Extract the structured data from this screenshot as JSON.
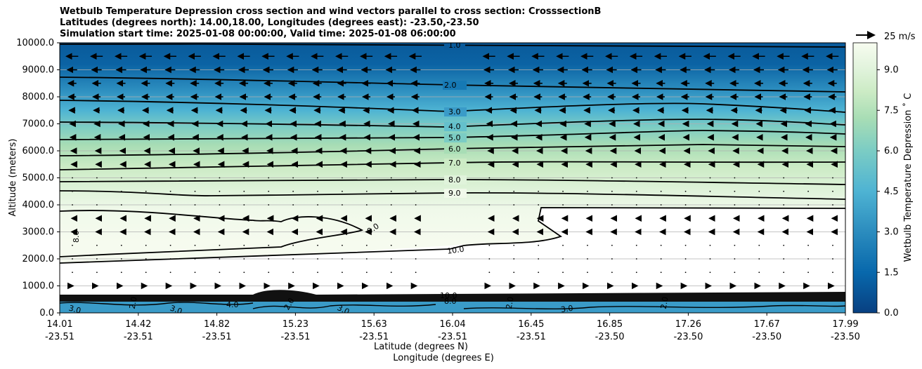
{
  "title_lines": [
    "Wetbulb Temperature Depression cross section and wind vectors parallel to cross section: CrosssectionB",
    "Latitudes (degrees north): 14.00,18.00, Longitudes (degrees east): -23.50,-23.50",
    "Simulation start time: 2025-01-08 00:00:00, Valid time: 2025-01-08 06:00:00"
  ],
  "chart_data": {
    "type": "heatmap",
    "plot_kind": "filled contour cross section with contour lines and wind vectors",
    "ylabel": "Altitude (meters)",
    "xlabel_lat": "Latitude (degrees N)",
    "xlabel_lon": "Longitude (degrees E)",
    "ylim": [
      0,
      10000
    ],
    "y_ticks": [
      "0.0",
      "1000.0",
      "2000.0",
      "3000.0",
      "4000.0",
      "5000.0",
      "6000.0",
      "7000.0",
      "8000.0",
      "9000.0",
      "10000.0"
    ],
    "x_ticks_lat": [
      "14.01",
      "14.42",
      "14.82",
      "15.23",
      "15.63",
      "16.04",
      "16.45",
      "16.85",
      "17.26",
      "17.67",
      "17.99"
    ],
    "x_ticks_lon": [
      "-23.51",
      "-23.51",
      "-23.51",
      "-23.51",
      "-23.51",
      "-23.51",
      "-23.51",
      "-23.50",
      "-23.50",
      "-23.50",
      "-23.50"
    ],
    "grid": "horizontal",
    "colorbar": {
      "label": "Wetbulb Temperature Depression ˚ C",
      "ticks": [
        "0.0",
        "1.5",
        "3.0",
        "4.5",
        "6.0",
        "7.5",
        "9.0"
      ],
      "range": [
        0,
        10
      ],
      "colormap": "GnBu reversed",
      "colors": [
        "#084081",
        "#0a5a9a",
        "#0868ac",
        "#1679b4",
        "#2b8cbe",
        "#3a9bc8",
        "#4eb3d3",
        "#64c0cc",
        "#7bccc4",
        "#93d5c4",
        "#a8ddb5",
        "#bae4bc",
        "#ccebc5",
        "#dcf1d5",
        "#e0f3db",
        "#eaf6e3",
        "#f3faee",
        "#f7fcf0",
        "#ffffff"
      ]
    },
    "field_profile_midsection": [
      {
        "altitude": 10000,
        "value": 0.8
      },
      {
        "altitude": 9000,
        "value": 1.5
      },
      {
        "altitude": 8000,
        "value": 2.5
      },
      {
        "altitude": 7000,
        "value": 4.0
      },
      {
        "altitude": 6000,
        "value": 6.0
      },
      {
        "altitude": 5000,
        "value": 7.5
      },
      {
        "altitude": 4000,
        "value": 9.2
      },
      {
        "altitude": 3000,
        "value": 9.8
      },
      {
        "altitude": 2000,
        "value": 10.0
      },
      {
        "altitude": 1000,
        "value": 10.0
      },
      {
        "altitude": 500,
        "value": 3.0
      },
      {
        "altitude": 0,
        "value": 2.0
      }
    ],
    "contour_labels": [
      "1.0",
      "2.0",
      "3.0",
      "4.0",
      "5.0",
      "6.0",
      "7.0",
      "8.0",
      "9.0",
      "9.0",
      "10.0",
      "8.0",
      "10.0",
      "8.0",
      "3.0",
      "3.0",
      "3.0",
      "3.0",
      "2.0",
      "2.0",
      "2.0",
      "2.0",
      "4.0"
    ],
    "wind_vectors": {
      "key_label": "25 m/s",
      "direction": "parallel to cross section",
      "rows": [
        {
          "altitude": 9500,
          "u": -16
        },
        {
          "altitude": 9000,
          "u": -13
        },
        {
          "altitude": 8500,
          "u": -11
        },
        {
          "altitude": 8000,
          "u": -10
        },
        {
          "altitude": 7500,
          "u": -8
        },
        {
          "altitude": 7000,
          "u": -6
        },
        {
          "altitude": 6500,
          "u": -5
        },
        {
          "altitude": 6000,
          "u": -3
        },
        {
          "altitude": 5500,
          "u": -2
        },
        {
          "altitude": 5000,
          "u": -1
        },
        {
          "altitude": 4500,
          "u": -0.5
        },
        {
          "altitude": 4000,
          "u": -1
        },
        {
          "altitude": 3500,
          "u": -1.5
        },
        {
          "altitude": 3000,
          "u": -2
        },
        {
          "altitude": 2500,
          "u": -1
        },
        {
          "altitude": 2000,
          "u": -0.5
        },
        {
          "altitude": 1500,
          "u": 0
        },
        {
          "altitude": 1000,
          "u": 2
        }
      ]
    }
  }
}
